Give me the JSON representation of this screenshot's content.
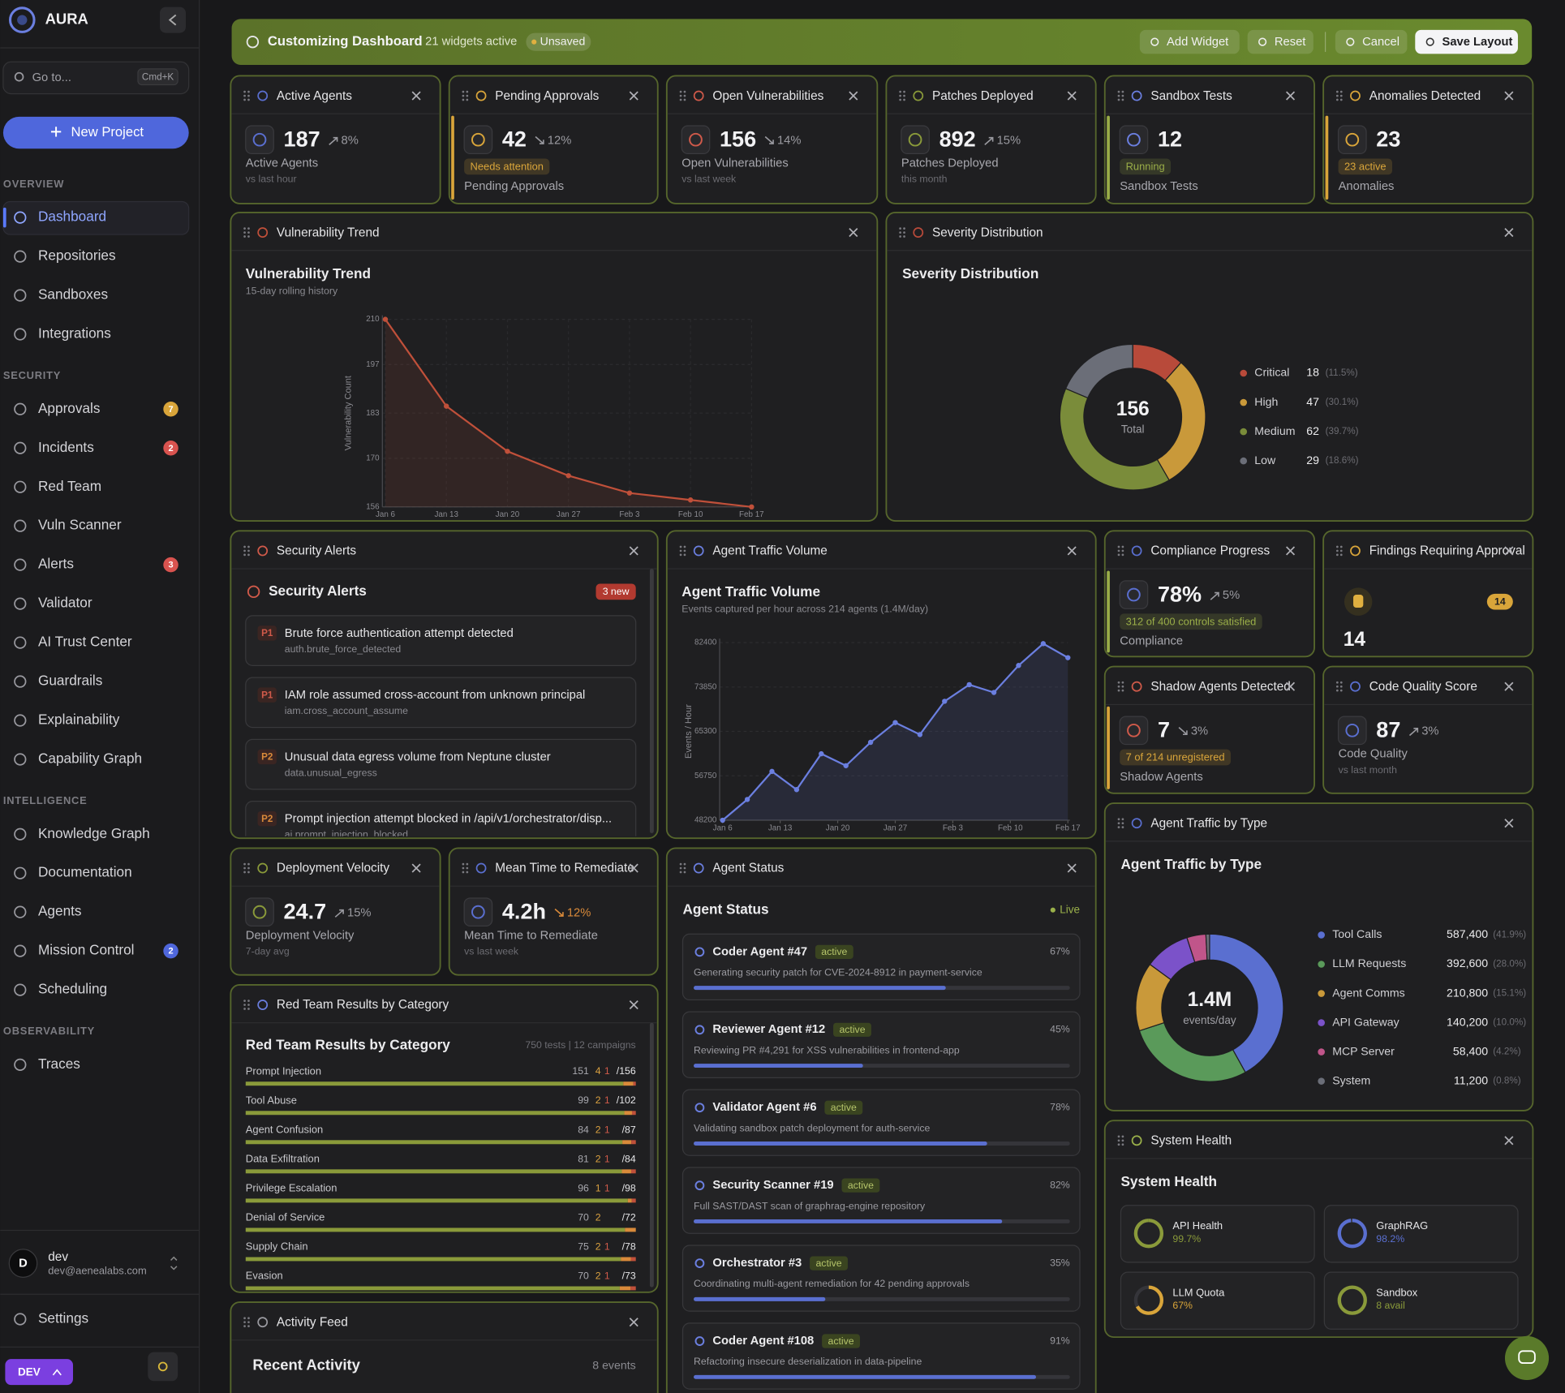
{
  "sidebar": {
    "brand": "AURA",
    "search": "Go to...",
    "shortcut": "Cmd+K",
    "new_project": "New Project",
    "sections": [
      {
        "title": "OVERVIEW",
        "items": [
          {
            "label": "Dashboard",
            "active": true
          },
          {
            "label": "Repositories"
          },
          {
            "label": "Sandboxes"
          },
          {
            "label": "Integrations"
          }
        ]
      },
      {
        "title": "SECURITY",
        "items": [
          {
            "label": "Approvals",
            "badge": 7,
            "badge_color": "#d9a53a"
          },
          {
            "label": "Incidents",
            "badge": 2,
            "badge_color": "#d9534f"
          },
          {
            "label": "Red Team"
          },
          {
            "label": "Vuln Scanner"
          },
          {
            "label": "Alerts",
            "badge": 3,
            "badge_color": "#d9534f"
          },
          {
            "label": "Validator"
          },
          {
            "label": "AI Trust Center"
          },
          {
            "label": "Guardrails"
          },
          {
            "label": "Explainability"
          },
          {
            "label": "Capability Graph"
          }
        ]
      },
      {
        "title": "INTELLIGENCE",
        "items": [
          {
            "label": "Knowledge Graph"
          },
          {
            "label": "Documentation"
          },
          {
            "label": "Agents"
          },
          {
            "label": "Mission Control",
            "badge": 2,
            "badge_color": "#4f67dc"
          },
          {
            "label": "Scheduling"
          }
        ]
      },
      {
        "title": "OBSERVABILITY",
        "items": [
          {
            "label": "Traces"
          }
        ]
      }
    ],
    "user": {
      "initial": "D",
      "name": "dev",
      "email": "dev@aenealabs.com"
    },
    "settings": "Settings",
    "env": "DEV"
  },
  "toolbar": {
    "title": "Customizing Dashboard",
    "widget_count": "21 widgets active",
    "status": "Unsaved",
    "buttons": [
      "Add Widget",
      "Reset",
      "Cancel",
      "Save Layout"
    ]
  },
  "metrics": [
    {
      "title": "Active Agents",
      "value": "187",
      "trend": "8%",
      "trend_direction": "up",
      "label": "Active Agents",
      "sub": "vs last hour",
      "color": "#5a6fd0"
    },
    {
      "title": "Pending Approvals",
      "value": "42",
      "trend": "12%",
      "trend_direction": "down",
      "badge": "Needs attention",
      "label": "Pending Approvals",
      "color": "#d9a53a",
      "accent": "#d9a53a"
    },
    {
      "title": "Open Vulnerabilities",
      "value": "156",
      "trend": "14%",
      "trend_direction": "down",
      "label": "Open Vulnerabilities",
      "sub": "vs last week",
      "color": "#d05a4a"
    },
    {
      "title": "Patches Deployed",
      "value": "892",
      "trend": "15%",
      "trend_direction": "up",
      "label": "Patches Deployed",
      "sub": "this month",
      "color": "#8a9a3a"
    },
    {
      "title": "Sandbox Tests",
      "value": "12",
      "badge": "Running",
      "label": "Sandbox Tests",
      "color": "#6b7fe0",
      "accent": "#9aae48"
    },
    {
      "title": "Anomalies Detected",
      "value": "23",
      "badge": "23 active",
      "label": "Anomalies",
      "color": "#d9a53a",
      "accent": "#d9a53a"
    },
    {
      "title": "Compliance Progress",
      "value": "78%",
      "trend": "5%",
      "trend_direction": "up",
      "badge": "312 of 400 controls satisfied",
      "label": "Compliance",
      "color": "#5a6fd0",
      "accent": "#9aae48"
    },
    {
      "title": "Shadow Agents Detected",
      "value": "7",
      "trend": "3%",
      "trend_direction": "down",
      "badge": "7 of 214 unregistered",
      "label": "Shadow Agents",
      "color": "#d05a4a",
      "accent": "#d9a53a"
    },
    {
      "title": "Code Quality Score",
      "value": "87",
      "trend": "3%",
      "trend_direction": "up",
      "label": "Code Quality",
      "sub": "vs last month",
      "color": "#5a6fd0"
    },
    {
      "title": "Deployment Velocity",
      "value": "24.7",
      "trend": "15%",
      "trend_direction": "up",
      "label": "Deployment Velocity",
      "sub": "7-day avg",
      "color": "#8a9a3a"
    },
    {
      "title": "Mean Time to Remediate",
      "value": "4.2h",
      "trend": "12%",
      "trend_direction": "down",
      "trend_color": "#d98a3a",
      "label": "Mean Time to Remediate",
      "sub": "vs last week",
      "color": "#5a6fd0"
    }
  ],
  "findings": {
    "header": "Findings Requiring Approval",
    "value": 14,
    "badge": 14
  },
  "chart_data": [
    {
      "type": "line",
      "header": "Vulnerability Trend",
      "title": "Vulnerability Trend",
      "subtitle": "15-day rolling history",
      "y_label": "Vulnerability Count",
      "categories": [
        "Jan 6",
        "Jan 13",
        "Jan 20",
        "Jan 27",
        "Feb 3",
        "Feb 10",
        "Feb 17"
      ],
      "values": [
        210,
        185,
        172,
        165,
        160,
        158,
        156
      ],
      "color": "#c0503a",
      "ylim": [
        156,
        210
      ],
      "yticks": [
        156,
        170,
        183,
        197,
        210
      ],
      "grid": true
    },
    {
      "type": "pie",
      "header": "Severity Distribution",
      "title": "Severity Distribution",
      "total": 156,
      "center_label": "Total",
      "categories": [
        "Critical",
        "High",
        "Medium",
        "Low"
      ],
      "values": [
        18,
        47,
        62,
        29
      ],
      "percent_labels": [
        "(11.5%)",
        "(30.1%)",
        "(39.7%)",
        "(18.6%)"
      ],
      "colors": [
        "#b84a3a",
        "#c9993a",
        "#7a8c3a",
        "#6b6e78"
      ]
    },
    {
      "type": "line",
      "header": "Agent Traffic Volume",
      "title": "Agent Traffic Volume",
      "subtitle": "Events captured per hour across 214 agents (1.4M/day)",
      "y_label": "Events / Hour",
      "x": [
        "Jan 6",
        "Jan 9",
        "Jan 12",
        "Jan 15",
        "Jan 18",
        "Jan 21",
        "Jan 24",
        "Jan 27",
        "Jan 30",
        "Feb 2",
        "Feb 5",
        "Feb 8",
        "Feb 11",
        "Feb 14",
        "Feb 17"
      ],
      "values": [
        48200,
        52200,
        57600,
        54100,
        61000,
        58700,
        63200,
        67000,
        64700,
        71100,
        74300,
        72800,
        78000,
        82200,
        79500
      ],
      "xlim": [
        "Jan 6",
        "Feb 17"
      ],
      "xticks": [
        "Jan 6",
        "Jan 13",
        "Jan 20",
        "Jan 27",
        "Feb 3",
        "Feb 10",
        "Feb 17"
      ],
      "color": "#6b7fe0",
      "ylim": [
        48200,
        82400
      ],
      "yticks": [
        48200,
        56750,
        65300,
        73850,
        82400
      ],
      "grid": true
    },
    {
      "type": "pie",
      "header": "Agent Traffic by Type",
      "title": "Agent Traffic by Type",
      "center_value": "1.4M",
      "center_label": "events/day",
      "categories": [
        "Tool Calls",
        "LLM Requests",
        "Agent Comms",
        "API Gateway",
        "MCP Server",
        "System"
      ],
      "values": [
        587400,
        392600,
        210800,
        140200,
        58400,
        11200
      ],
      "value_labels": [
        "587,400",
        "392,600",
        "210,800",
        "140,200",
        "58,400",
        "11,200"
      ],
      "percent_labels": [
        "(41.9%)",
        "(28.0%)",
        "(15.1%)",
        "(10.0%)",
        "(4.2%)",
        "(0.8%)"
      ],
      "colors": [
        "#5a6fd0",
        "#5a9a5a",
        "#c9993a",
        "#7b52c9",
        "#c0558a",
        "#6b6e78"
      ]
    }
  ],
  "security_alerts": {
    "header": "Security Alerts",
    "title": "Security Alerts",
    "badge": "3 new",
    "alerts": [
      {
        "priority": "P1",
        "title": "Brute force authentication attempt detected",
        "code": "auth.brute_force_detected"
      },
      {
        "priority": "P1",
        "title": "IAM role assumed cross-account from unknown principal",
        "code": "iam.cross_account_assume"
      },
      {
        "priority": "P2",
        "title": "Unusual data egress volume from Neptune cluster",
        "code": "data.unusual_egress"
      },
      {
        "priority": "P2",
        "title": "Prompt injection attempt blocked in /api/v1/orchestrator/disp...",
        "code": "ai.prompt_injection_blocked"
      }
    ]
  },
  "red_team": {
    "header": "Red Team Results by Category",
    "title": "Red Team Results by Category",
    "meta": "750 tests | 12 campaigns",
    "rows": [
      {
        "category": "Prompt Injection",
        "passed": 151,
        "warned": 4,
        "failed": 1,
        "total_label": "/156"
      },
      {
        "category": "Tool Abuse",
        "passed": 99,
        "warned": 2,
        "failed": 1,
        "total_label": "/102"
      },
      {
        "category": "Agent Confusion",
        "passed": 84,
        "warned": 2,
        "failed": 1,
        "total_label": "/87"
      },
      {
        "category": "Data Exfiltration",
        "passed": 81,
        "warned": 2,
        "failed": 1,
        "total_label": "/84"
      },
      {
        "category": "Privilege Escalation",
        "passed": 96,
        "warned": 1,
        "failed": 1,
        "total_label": "/98"
      },
      {
        "category": "Denial of Service",
        "passed": 70,
        "warned": 2,
        "total_label": "/72"
      },
      {
        "category": "Supply Chain",
        "passed": 75,
        "warned": 2,
        "failed": 1,
        "total_label": "/78"
      },
      {
        "category": "Evasion",
        "passed": 70,
        "warned": 2,
        "failed": 1,
        "total_label": "/73"
      }
    ]
  },
  "agent_status": {
    "header": "Agent Status",
    "title": "Agent Status",
    "live": "Live",
    "agents": [
      {
        "name": "Coder Agent #47",
        "status": "active",
        "progress": 67,
        "progress_label": "67%",
        "task": "Generating security patch for CVE-2024-8912 in payment-service"
      },
      {
        "name": "Reviewer Agent #12",
        "status": "active",
        "progress": 45,
        "progress_label": "45%",
        "task": "Reviewing PR #4,291 for XSS vulnerabilities in frontend-app"
      },
      {
        "name": "Validator Agent #6",
        "status": "active",
        "progress": 78,
        "progress_label": "78%",
        "task": "Validating sandbox patch deployment for auth-service"
      },
      {
        "name": "Security Scanner #19",
        "status": "active",
        "progress": 82,
        "progress_label": "82%",
        "task": "Full SAST/DAST scan of graphrag-engine repository"
      },
      {
        "name": "Orchestrator #3",
        "status": "active",
        "progress": 35,
        "progress_label": "35%",
        "task": "Coordinating multi-agent remediation for 42 pending approvals"
      },
      {
        "name": "Coder Agent #108",
        "status": "active",
        "progress": 91,
        "progress_label": "91%",
        "task": "Refactoring insecure deserialization in data-pipeline"
      }
    ]
  },
  "system_health": {
    "header": "System Health",
    "title": "System Health",
    "services": [
      {
        "name": "API Health",
        "value": 99.7,
        "value_label": "99.7%",
        "color": "#8a9a3a"
      },
      {
        "name": "GraphRAG",
        "value": 98.2,
        "value_label": "98.2%",
        "color": "#5a6fd0"
      },
      {
        "name": "LLM Quota",
        "value": 67,
        "value_label": "67%",
        "color": "#d9a53a"
      },
      {
        "name": "Sandbox",
        "value_label": "8 avail",
        "color": "#8a9a3a"
      }
    ]
  },
  "activity_feed": {
    "header": "Activity Feed",
    "title": "Recent Activity",
    "count": "8 events"
  }
}
